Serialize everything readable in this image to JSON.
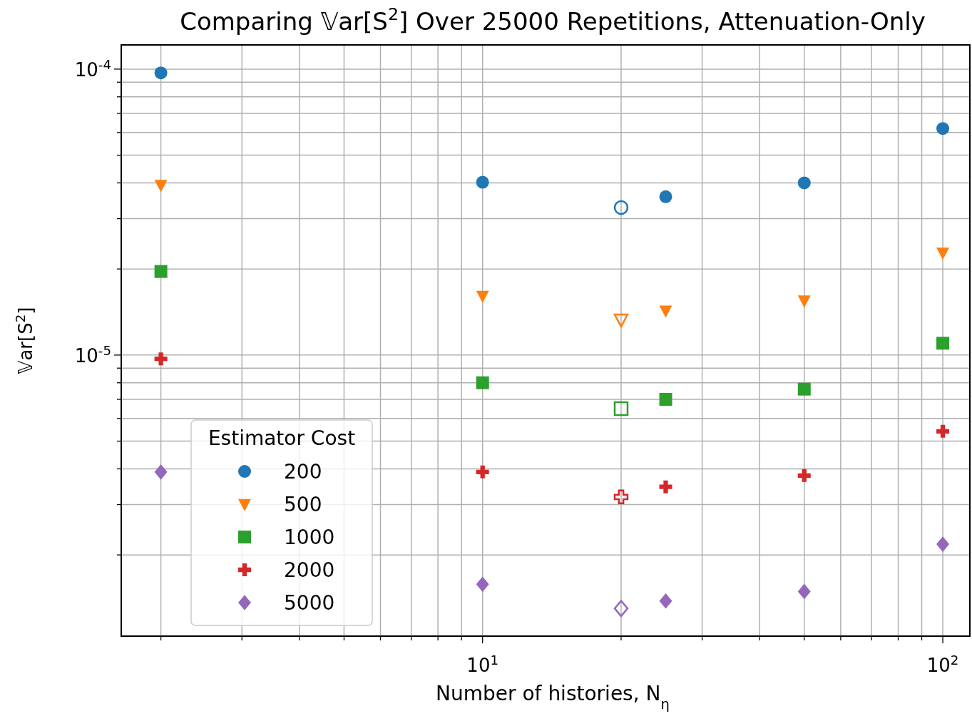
{
  "chart_data": {
    "type": "scatter",
    "title": "Comparing 𝕍ar[S$^{2}$] Over 25000 Repetitions, Attenuation-Only",
    "xlabel": "Number of histories, N$_{η}$",
    "ylabel": "𝕍ar[S$^{2}$]",
    "legend_title": "Estimator Cost",
    "log": "xy",
    "grid": true,
    "legend": "bottom left",
    "xlim": [
      1.64,
      114.5
    ],
    "ylim": [
      1.04e-06,
      0.0001215
    ],
    "xticks": [
      {
        "value": 2,
        "label": null
      },
      {
        "value": 3,
        "label": null
      },
      {
        "value": 4,
        "label": null
      },
      {
        "value": 5,
        "label": null
      },
      {
        "value": 6,
        "label": null
      },
      {
        "value": 7,
        "label": null
      },
      {
        "value": 8,
        "label": null
      },
      {
        "value": 9,
        "label": null
      },
      {
        "value": 10,
        "label": "10$^{1}$"
      },
      {
        "value": 20,
        "label": null
      },
      {
        "value": 30,
        "label": null
      },
      {
        "value": 40,
        "label": null
      },
      {
        "value": 50,
        "label": null
      },
      {
        "value": 60,
        "label": null
      },
      {
        "value": 70,
        "label": null
      },
      {
        "value": 80,
        "label": null
      },
      {
        "value": 90,
        "label": null
      },
      {
        "value": 100,
        "label": "10$^{2}$"
      }
    ],
    "yticks": [
      {
        "value": 2e-06,
        "label": null
      },
      {
        "value": 3e-06,
        "label": null
      },
      {
        "value": 4e-06,
        "label": null
      },
      {
        "value": 5e-06,
        "label": null
      },
      {
        "value": 6e-06,
        "label": null
      },
      {
        "value": 7e-06,
        "label": null
      },
      {
        "value": 8e-06,
        "label": null
      },
      {
        "value": 9e-06,
        "label": null
      },
      {
        "value": 1e-05,
        "label": "10$^{-5}$"
      },
      {
        "value": 2e-05,
        "label": null
      },
      {
        "value": 3e-05,
        "label": null
      },
      {
        "value": 4e-05,
        "label": null
      },
      {
        "value": 5e-05,
        "label": null
      },
      {
        "value": 6e-05,
        "label": null
      },
      {
        "value": 7e-05,
        "label": null
      },
      {
        "value": 8e-05,
        "label": null
      },
      {
        "value": 9e-05,
        "label": null
      },
      {
        "value": 0.0001,
        "label": "10$^{-4}$"
      }
    ],
    "series": [
      {
        "name": "200",
        "color": "#1f77b4",
        "marker": "circle",
        "x": [
          2,
          10,
          25,
          50,
          100
        ],
        "values": [
          9.7e-05,
          4.02e-05,
          3.58e-05,
          4e-05,
          6.2e-05
        ]
      },
      {
        "color": "#1f77b4",
        "marker": "circle",
        "x": [
          20
        ],
        "values": [
          3.28e-05
        ]
      },
      {
        "name": "500",
        "color": "#ff7f0e",
        "marker": "triangle",
        "x": [
          2,
          10,
          25,
          50,
          100
        ],
        "values": [
          3.93e-05,
          1.61e-05,
          1.43e-05,
          1.55e-05,
          2.28e-05
        ]
      },
      {
        "color": "#ff7f0e",
        "marker": "triangle",
        "x": [
          20
        ],
        "values": [
          1.33e-05
        ]
      },
      {
        "name": "1000",
        "color": "#2ca02c",
        "marker": "square",
        "x": [
          2,
          10,
          25,
          50,
          100
        ],
        "values": [
          1.96e-05,
          8e-06,
          7e-06,
          7.6e-06,
          1.1e-05
        ]
      },
      {
        "color": "#2ca02c",
        "marker": "square",
        "x": [
          20
        ],
        "values": [
          6.5e-06
        ]
      },
      {
        "name": "2000",
        "color": "#d62728",
        "marker": "cross",
        "x": [
          2,
          10,
          25,
          50,
          100
        ],
        "values": [
          9.7e-06,
          3.9e-06,
          3.46e-06,
          3.79e-06,
          5.41e-06
        ]
      },
      {
        "color": "#d62728",
        "marker": "cross",
        "x": [
          20
        ],
        "values": [
          3.19e-06
        ]
      },
      {
        "name": "5000",
        "color": "#9467bd",
        "marker": "diamond",
        "x": [
          2,
          10,
          25,
          50,
          100
        ],
        "values": [
          3.9e-06,
          1.58e-06,
          1.38e-06,
          1.49e-06,
          2.18e-06
        ]
      },
      {
        "color": "#9467bd",
        "marker": "diamond",
        "x": [
          20
        ],
        "values": [
          1.3e-06
        ]
      }
    ]
  }
}
